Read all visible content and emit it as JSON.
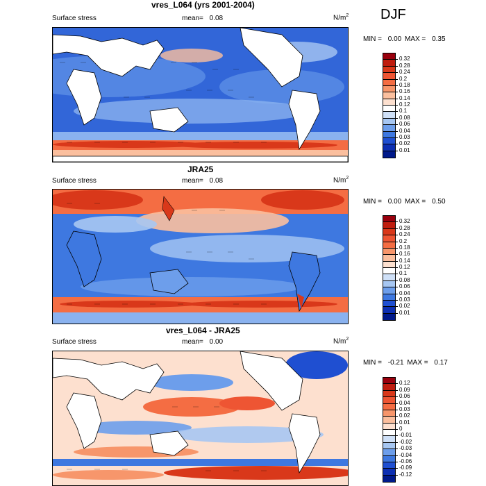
{
  "season": "DJF",
  "panels": [
    {
      "title": "vres_L064 (yrs 2001-2004)",
      "left_label": "Surface stress",
      "mean_label": "mean=",
      "mean_value": "0.08",
      "units_base": "N/m",
      "units_exp": "2",
      "min_label": "MIN =",
      "min_value": "0.00",
      "max_label": "MAX =",
      "max_value": "0.35",
      "colorbar_labels": [
        "0.32",
        "0.28",
        "0.24",
        "0.2",
        "0.18",
        "0.16",
        "0.14",
        "0.12",
        "0.1",
        "0.08",
        "0.06",
        "0.04",
        "0.03",
        "0.02",
        "0.01"
      ]
    },
    {
      "title": "JRA25",
      "left_label": "Surface stress",
      "mean_label": "mean=",
      "mean_value": "0.08",
      "units_base": "N/m",
      "units_exp": "2",
      "min_label": "MIN =",
      "min_value": "0.00",
      "max_label": "MAX =",
      "max_value": "0.50",
      "colorbar_labels": [
        "0.32",
        "0.28",
        "0.24",
        "0.2",
        "0.18",
        "0.16",
        "0.14",
        "0.12",
        "0.1",
        "0.08",
        "0.06",
        "0.04",
        "0.03",
        "0.02",
        "0.01"
      ]
    },
    {
      "title": "vres_L064 - JRA25",
      "left_label": "Surface stress",
      "mean_label": "mean=",
      "mean_value": "0.00",
      "units_base": "N/m",
      "units_exp": "2",
      "min_label": "MIN =",
      "min_value": "-0.21",
      "max_label": "MAX =",
      "max_value": "0.17",
      "colorbar_labels": [
        "0.12",
        "0.09",
        "0.06",
        "0.04",
        "0.03",
        "0.02",
        "0.01",
        "0",
        "-0.01",
        "-0.02",
        "-0.03",
        "-0.04",
        "-0.06",
        "-0.09",
        "-0.12"
      ]
    }
  ],
  "colorbar_colors": [
    "#99000d",
    "#bf1d0f",
    "#d9381a",
    "#ee5533",
    "#f46d43",
    "#f7966b",
    "#fbbf9e",
    "#fde0cf",
    "#ffffff",
    "#cfe0f7",
    "#a7c7f2",
    "#6d9eeb",
    "#3e78e0",
    "#1f4fd1",
    "#0d2fb2",
    "#00198a"
  ]
}
